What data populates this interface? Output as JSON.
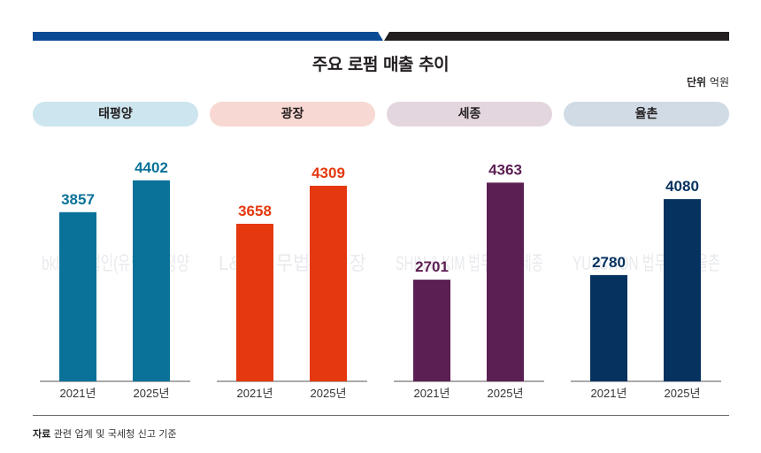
{
  "header": {
    "title": "주요 로펌 매출 추이",
    "unit_label": "단위",
    "unit_value": "억원",
    "bar_colors": {
      "left": "#0b4a95",
      "right": "#231f20"
    }
  },
  "footer": {
    "source_label": "자료",
    "source_text": "관련 업계 및 국세청 신고 기준"
  },
  "chart_data": {
    "type": "bar",
    "title": "주요 로펌 매출 추이",
    "unit": "억원",
    "categories": [
      "2021년",
      "2025년"
    ],
    "xlabel": "",
    "ylabel": "",
    "grid": false,
    "series": [
      {
        "name": "태평양",
        "values": [
          3857,
          4402
        ],
        "color": "#0a7299",
        "pill_color": "#cce5ee",
        "watermark": "bkl 법무법인(유한) 태평양"
      },
      {
        "name": "광장",
        "values": [
          3658,
          4309
        ],
        "color": "#e5380e",
        "pill_color": "#f8d8d2",
        "watermark": "L&K 법무법인 광장"
      },
      {
        "name": "세종",
        "values": [
          2701,
          4363
        ],
        "color": "#5c1f53",
        "pill_color": "#e4d6de",
        "watermark": "SHIN & KIM 법무법인 세종"
      },
      {
        "name": "율촌",
        "values": [
          2780,
          4080
        ],
        "color": "#05325f",
        "pill_color": "#d0dbe5",
        "watermark": "YULCHON 법무법인 율촌"
      }
    ]
  }
}
